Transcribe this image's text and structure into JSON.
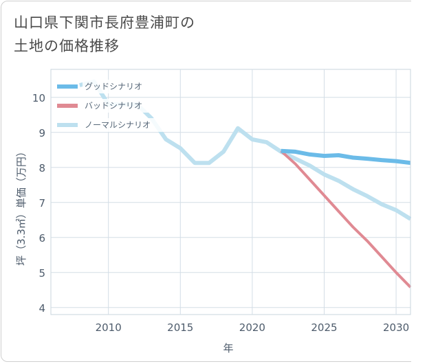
{
  "title": {
    "line1": "山口県下関市長府豊浦町の",
    "line2": "土地の価格推移"
  },
  "chart_data": {
    "type": "line",
    "xlabel": "年",
    "ylabel": "坪（3.3㎡）単価（万円）",
    "xlim": [
      2006,
      2031
    ],
    "ylim": [
      3.8,
      10.8
    ],
    "x_ticks": [
      2010,
      2015,
      2020,
      2025,
      2030
    ],
    "y_ticks": [
      4,
      5,
      6,
      7,
      8,
      9,
      10
    ],
    "grid": true,
    "legend_position": "top-left",
    "series": [
      {
        "name": "グッドシナリオ",
        "color": "#6bbbe8",
        "width": 6,
        "x": [
          2022,
          2023,
          2024,
          2025,
          2026,
          2027,
          2028,
          2029,
          2030,
          2031
        ],
        "y": [
          8.47,
          8.45,
          8.37,
          8.33,
          8.35,
          8.28,
          8.25,
          8.21,
          8.18,
          8.13
        ]
      },
      {
        "name": "バッドシナリオ",
        "color": "#e08a93",
        "width": 4,
        "x": [
          2022,
          2023,
          2024,
          2025,
          2026,
          2027,
          2028,
          2029,
          2030,
          2031
        ],
        "y": [
          8.47,
          8.1,
          7.65,
          7.2,
          6.75,
          6.3,
          5.9,
          5.45,
          5.0,
          4.58
        ]
      },
      {
        "name": "ノーマルシナリオ",
        "color": "#bde0ef",
        "width": 6,
        "x": [
          2008,
          2009,
          2010,
          2011,
          2012,
          2013,
          2014,
          2015,
          2016,
          2017,
          2018,
          2019,
          2020,
          2021,
          2022,
          2023,
          2024,
          2025,
          2026,
          2027,
          2028,
          2029,
          2030,
          2031
        ],
        "y": [
          10.35,
          10.45,
          9.8,
          9.8,
          9.8,
          9.4,
          8.8,
          8.55,
          8.13,
          8.13,
          8.45,
          9.12,
          8.8,
          8.72,
          8.45,
          8.25,
          8.05,
          7.8,
          7.62,
          7.38,
          7.18,
          6.95,
          6.78,
          6.53
        ]
      }
    ]
  }
}
